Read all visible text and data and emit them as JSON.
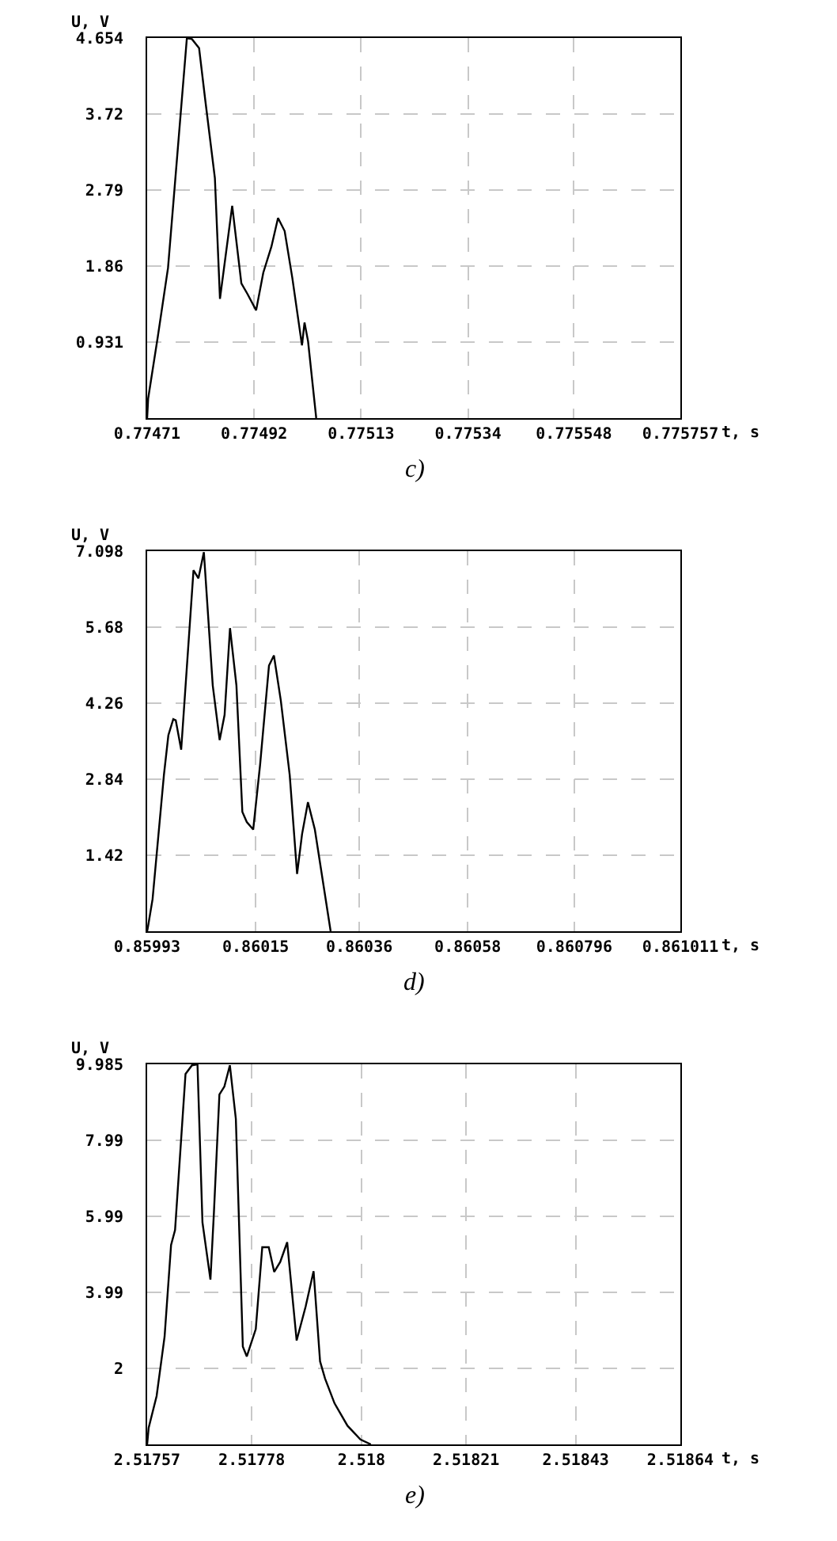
{
  "chart_data": [
    {
      "type": "line",
      "title": "c)",
      "xlabel": "t, s",
      "ylabel": "U, V",
      "color": "#000000",
      "grid": true,
      "x": [
        0.77471,
        0.774712,
        0.774731,
        0.774751,
        0.774788,
        0.774798,
        0.774812,
        0.774824,
        0.774843,
        0.774853,
        0.774877,
        0.774895,
        0.774907,
        0.774924,
        0.774938,
        0.774954,
        0.774967,
        0.77498,
        0.774995,
        0.775014,
        0.775019,
        0.775026,
        0.775042
      ],
      "values": [
        0,
        0.24,
        1.0,
        1.84,
        4.654,
        4.64,
        4.53,
        3.9,
        2.94,
        1.46,
        2.6,
        1.65,
        1.52,
        1.32,
        1.78,
        2.1,
        2.45,
        2.29,
        1.72,
        0.89,
        1.17,
        0.94,
        0
      ],
      "xlim": [
        0.77471,
        0.775757
      ],
      "xticks": [
        0.77471,
        0.77492,
        0.77513,
        0.77534,
        0.775548,
        0.775757
      ],
      "ylim": [
        0,
        4.654
      ],
      "yticks": [
        0.931,
        1.86,
        2.79,
        3.72,
        4.654
      ]
    },
    {
      "type": "line",
      "title": "d)",
      "xlabel": "t, s",
      "ylabel": "U, V",
      "color": "#000000",
      "grid": true,
      "x": [
        0.85993,
        0.859932,
        0.859941,
        0.859964,
        0.859973,
        0.859983,
        0.859988,
        0.859999,
        0.860024,
        0.860034,
        0.860045,
        0.860063,
        0.860077,
        0.860087,
        0.860098,
        0.860111,
        0.860123,
        0.860132,
        0.860145,
        0.860159,
        0.860177,
        0.860187,
        0.860201,
        0.860219,
        0.860234,
        0.860244,
        0.860256,
        0.86027,
        0.860302
      ],
      "values": [
        0,
        0.1,
        0.6,
        2.92,
        3.66,
        3.96,
        3.94,
        3.39,
        6.74,
        6.59,
        7.08,
        4.59,
        3.57,
        4.04,
        5.66,
        4.59,
        2.23,
        2.04,
        1.9,
        3.11,
        4.96,
        5.15,
        4.31,
        2.92,
        1.07,
        1.81,
        2.41,
        1.9,
        0
      ],
      "xlim": [
        0.85993,
        0.861011
      ],
      "xticks": [
        0.85993,
        0.86015,
        0.86036,
        0.86058,
        0.860796,
        0.861011
      ],
      "ylim": [
        0,
        7.098
      ],
      "yticks": [
        1.42,
        2.84,
        4.26,
        5.68,
        7.098
      ]
    },
    {
      "type": "line",
      "title": "e)",
      "xlabel": "t, s",
      "ylabel": "U, V",
      "color": "#000000",
      "grid": true,
      "x": [
        2.51757,
        2.517573,
        2.517589,
        2.517605,
        2.517618,
        2.517626,
        2.517647,
        2.51766,
        2.517671,
        2.517681,
        2.517697,
        2.517704,
        2.517715,
        2.517725,
        2.517736,
        2.517748,
        2.517762,
        2.51777,
        2.517788,
        2.517801,
        2.517814,
        2.517825,
        2.517837,
        2.517851,
        2.51787,
        2.517888,
        2.517904,
        2.517917,
        2.517927,
        2.517946,
        2.517972,
        2.517998,
        2.518019
      ],
      "values": [
        0,
        0.43,
        1.27,
        2.83,
        5.24,
        5.63,
        9.73,
        9.96,
        9.985,
        5.83,
        4.33,
        6.09,
        9.19,
        9.4,
        9.96,
        8.55,
        2.57,
        2.31,
        3.03,
        5.18,
        5.18,
        4.53,
        4.79,
        5.31,
        2.73,
        3.62,
        4.55,
        2.18,
        1.73,
        1.08,
        0.49,
        0.13,
        0
      ],
      "xlim": [
        2.51757,
        2.51864
      ],
      "xticks": [
        2.51757,
        2.51778,
        2.518,
        2.51821,
        2.51843,
        2.51864
      ],
      "ylim": [
        0,
        9.985
      ],
      "yticks": [
        2,
        3.99,
        5.99,
        7.99,
        9.985
      ]
    }
  ]
}
